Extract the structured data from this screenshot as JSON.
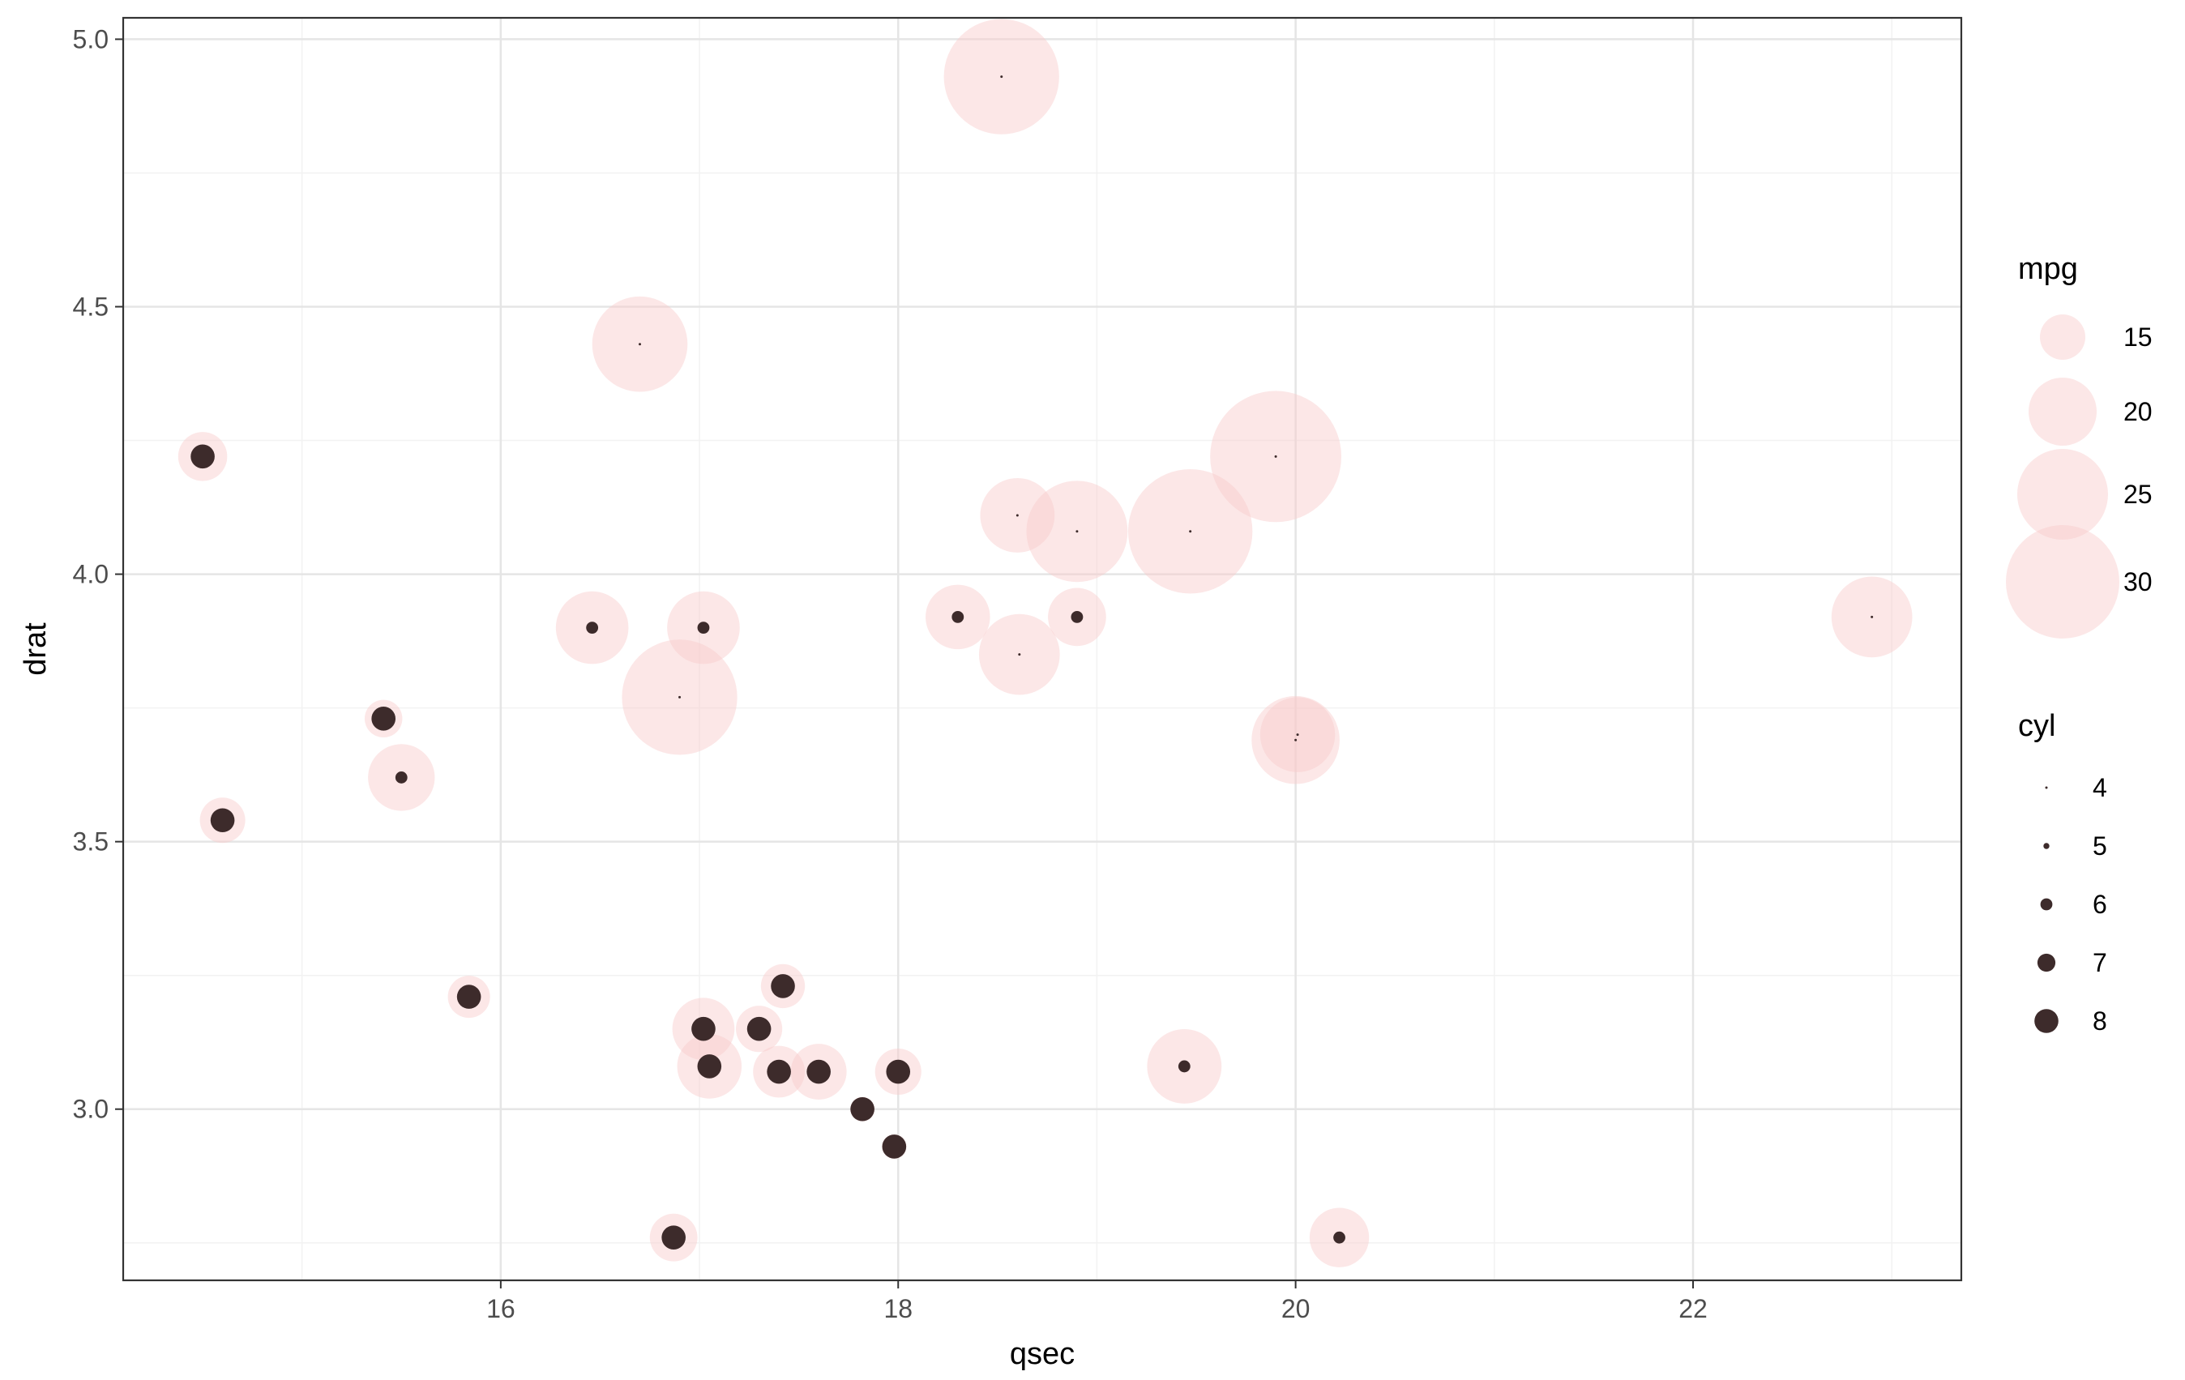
{
  "chart_data": {
    "type": "scatter",
    "title": "",
    "xlabel": "qsec",
    "ylabel": "drat",
    "xlim": [
      14.1,
      23.35
    ],
    "ylim": [
      2.68,
      5.04
    ],
    "x_ticks": [
      16,
      18,
      20,
      22
    ],
    "y_ticks": [
      3.0,
      3.5,
      4.0,
      4.5,
      5.0
    ],
    "x_tick_labels": [
      "16",
      "18",
      "20",
      "22"
    ],
    "y_tick_labels": [
      "3.0",
      "3.5",
      "4.0",
      "4.5",
      "5.0"
    ],
    "grid": true,
    "legend_position": "right",
    "colors": {
      "bubble": "#f8c9c9",
      "bubble_opacity": 0.45,
      "point": "#3d2b2b",
      "grid_major": "#e5e5e5",
      "grid_minor": "#f2f2f2",
      "panel_border": "#333333"
    },
    "size_legend": {
      "title": "mpg",
      "values": [
        15,
        20,
        25,
        30
      ],
      "labels": [
        "15",
        "20",
        "25",
        "30"
      ]
    },
    "cyl_legend": {
      "title": "cyl",
      "values": [
        4,
        5,
        6,
        7,
        8
      ],
      "labels": [
        "4",
        "5",
        "6",
        "7",
        "8"
      ]
    },
    "points": [
      {
        "qsec": 16.46,
        "drat": 3.9,
        "mpg": 21.0,
        "cyl": 6
      },
      {
        "qsec": 17.02,
        "drat": 3.9,
        "mpg": 21.0,
        "cyl": 6
      },
      {
        "qsec": 18.61,
        "drat": 3.85,
        "mpg": 22.8,
        "cyl": 4
      },
      {
        "qsec": 19.44,
        "drat": 3.08,
        "mpg": 21.4,
        "cyl": 6
      },
      {
        "qsec": 17.02,
        "drat": 3.15,
        "mpg": 18.7,
        "cyl": 8
      },
      {
        "qsec": 20.22,
        "drat": 2.76,
        "mpg": 18.1,
        "cyl": 6
      },
      {
        "qsec": 15.84,
        "drat": 3.21,
        "mpg": 14.3,
        "cyl": 8
      },
      {
        "qsec": 20.0,
        "drat": 3.69,
        "mpg": 24.4,
        "cyl": 4
      },
      {
        "qsec": 22.9,
        "drat": 3.92,
        "mpg": 22.8,
        "cyl": 4
      },
      {
        "qsec": 18.3,
        "drat": 3.92,
        "mpg": 19.2,
        "cyl": 6
      },
      {
        "qsec": 18.9,
        "drat": 3.92,
        "mpg": 17.8,
        "cyl": 6
      },
      {
        "qsec": 17.4,
        "drat": 3.07,
        "mpg": 16.4,
        "cyl": 8
      },
      {
        "qsec": 17.6,
        "drat": 3.07,
        "mpg": 17.3,
        "cyl": 8
      },
      {
        "qsec": 18.0,
        "drat": 3.07,
        "mpg": 15.2,
        "cyl": 8
      },
      {
        "qsec": 17.98,
        "drat": 2.93,
        "mpg": 10.4,
        "cyl": 8
      },
      {
        "qsec": 17.82,
        "drat": 3.0,
        "mpg": 10.4,
        "cyl": 8
      },
      {
        "qsec": 17.42,
        "drat": 3.23,
        "mpg": 14.7,
        "cyl": 8
      },
      {
        "qsec": 19.47,
        "drat": 4.08,
        "mpg": 32.4,
        "cyl": 4
      },
      {
        "qsec": 18.52,
        "drat": 4.93,
        "mpg": 30.4,
        "cyl": 4
      },
      {
        "qsec": 19.9,
        "drat": 4.22,
        "mpg": 33.9,
        "cyl": 4
      },
      {
        "qsec": 20.01,
        "drat": 3.7,
        "mpg": 21.5,
        "cyl": 4
      },
      {
        "qsec": 16.87,
        "drat": 2.76,
        "mpg": 15.5,
        "cyl": 8
      },
      {
        "qsec": 17.3,
        "drat": 3.15,
        "mpg": 15.2,
        "cyl": 8
      },
      {
        "qsec": 15.41,
        "drat": 3.73,
        "mpg": 13.3,
        "cyl": 8
      },
      {
        "qsec": 17.05,
        "drat": 3.08,
        "mpg": 19.2,
        "cyl": 8
      },
      {
        "qsec": 18.9,
        "drat": 4.08,
        "mpg": 27.3,
        "cyl": 4
      },
      {
        "qsec": 16.7,
        "drat": 4.43,
        "mpg": 26.0,
        "cyl": 4
      },
      {
        "qsec": 16.9,
        "drat": 3.77,
        "mpg": 30.4,
        "cyl": 4
      },
      {
        "qsec": 14.5,
        "drat": 4.22,
        "mpg": 15.8,
        "cyl": 8
      },
      {
        "qsec": 15.5,
        "drat": 3.62,
        "mpg": 19.7,
        "cyl": 6
      },
      {
        "qsec": 14.6,
        "drat": 3.54,
        "mpg": 15.0,
        "cyl": 8
      },
      {
        "qsec": 18.6,
        "drat": 4.11,
        "mpg": 21.4,
        "cyl": 4
      }
    ]
  }
}
